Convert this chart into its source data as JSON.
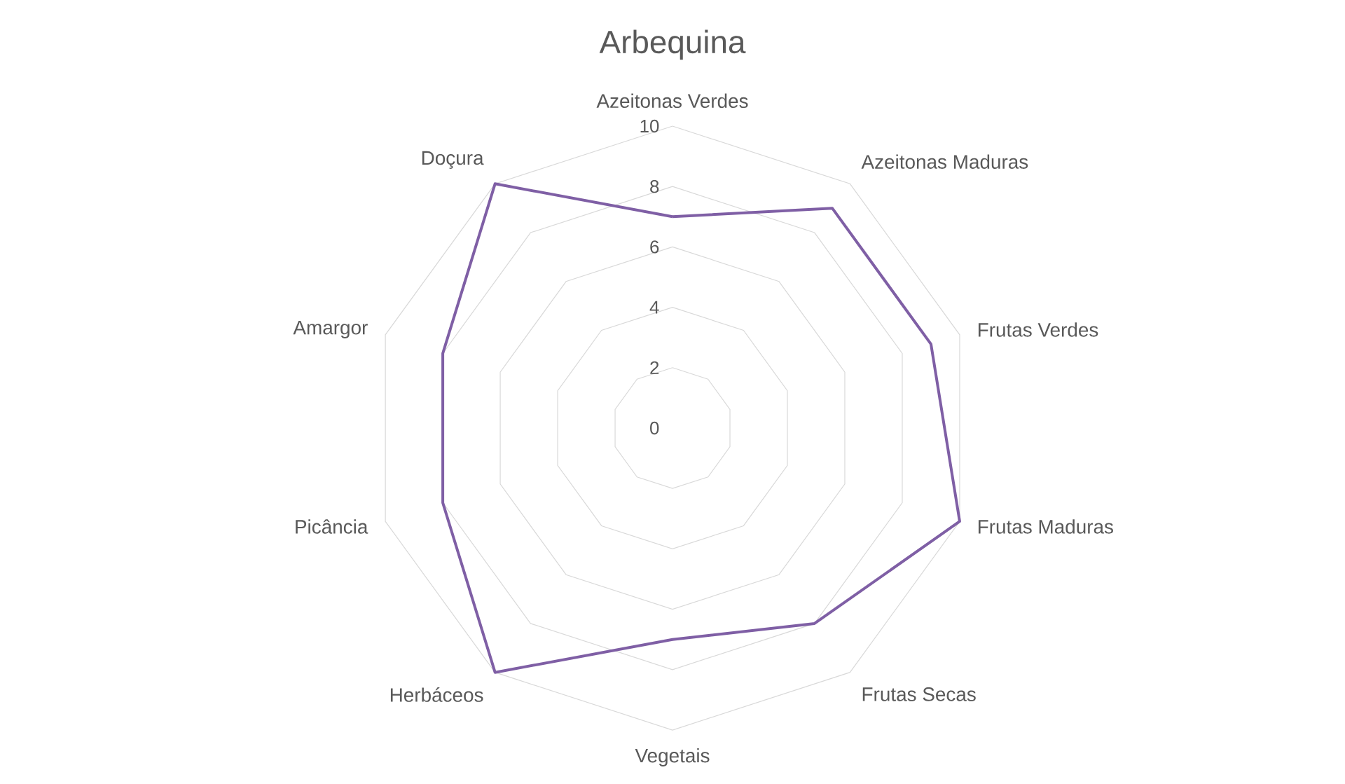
{
  "chart_data": {
    "type": "radar",
    "title": "Arbequina",
    "categories": [
      "Azeitonas Verdes",
      "Azeitonas Maduras",
      "Frutas Verdes",
      "Frutas Maduras",
      "Frutas Secas",
      "Vegetais",
      "Herbáceos",
      "Picância",
      "Amargor",
      "Doçura"
    ],
    "series": [
      {
        "color": "#7f5fa5",
        "values": [
          7,
          9,
          9,
          10,
          8,
          7,
          10,
          8,
          8,
          10
        ]
      }
    ],
    "ylim": [
      0,
      10
    ],
    "yticks": [
      0,
      2,
      4,
      6,
      8,
      10
    ],
    "grid": true
  }
}
